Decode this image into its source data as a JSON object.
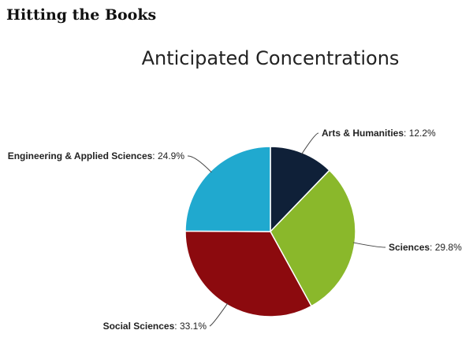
{
  "header": {
    "title": "Hitting the Books"
  },
  "chart_data": {
    "type": "pie",
    "title": "Anticipated Concentrations",
    "slices": [
      {
        "label": "Arts & Humanities",
        "value": 12.2,
        "display": "12.2%",
        "color": "#0f2038"
      },
      {
        "label": "Sciences",
        "value": 29.8,
        "display": "29.8%",
        "color": "#8ab82b"
      },
      {
        "label": "Social Sciences",
        "value": 33.1,
        "display": "33.1%",
        "color": "#8c0a0e"
      },
      {
        "label": "Engineering & Applied Sciences",
        "value": 24.9,
        "display": "24.9%",
        "color": "#20a9cf"
      }
    ],
    "start_angle_deg": 0,
    "direction": "clockwise",
    "legend": "none"
  }
}
